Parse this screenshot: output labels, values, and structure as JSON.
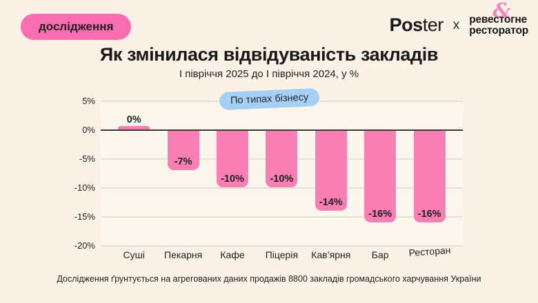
{
  "badge": {
    "label": "дослідження"
  },
  "logos": {
    "poster_bold": "Pos",
    "poster_light": "ter",
    "separator": "x",
    "partner_line1_pre": "реве",
    "partner_amp": "&",
    "partner_line1_post": "стогне",
    "partner_line2": "ресторатор"
  },
  "chart_badge": {
    "label": "По типах бізнесу"
  },
  "chart_data": {
    "type": "bar",
    "title": "Як змінилася відвідуваність закладів",
    "subtitle": "І півріччя 2025 до І півріччя 2024, у %",
    "categories": [
      "Суші",
      "Пекарня",
      "Кафе",
      "Піцерія",
      "Кав’ярня",
      "Бар",
      "Ресторан"
    ],
    "values": [
      0,
      -7,
      -10,
      -10,
      -14,
      -16,
      -16
    ],
    "value_labels": [
      "0%",
      "-7%",
      "-10%",
      "-10%",
      "-14%",
      "-16%",
      "-16%"
    ],
    "y_ticks": [
      "5%",
      "0%",
      "-5%",
      "-10%",
      "-15%",
      "-20%"
    ],
    "y_tick_values": [
      5,
      0,
      -5,
      -10,
      -15,
      -20
    ],
    "ylim": [
      -20,
      5
    ],
    "xlabel": "",
    "ylabel": "",
    "grid": "horizontal",
    "bar_color": "#f97eb3"
  },
  "footnote": "Дослідження ґрунтується на агрегованих даних продажів 8800 закладів громадського харчування України",
  "colors": {
    "background": "#faf2e6",
    "bar": "#f97eb3",
    "badge": "#fb6db1",
    "type_pill": "#a6cff4",
    "ampersand": "#f784bc",
    "zero_line": "#3d3a36",
    "gridline": "#e7e0d3",
    "text": "#1e1c1a"
  }
}
